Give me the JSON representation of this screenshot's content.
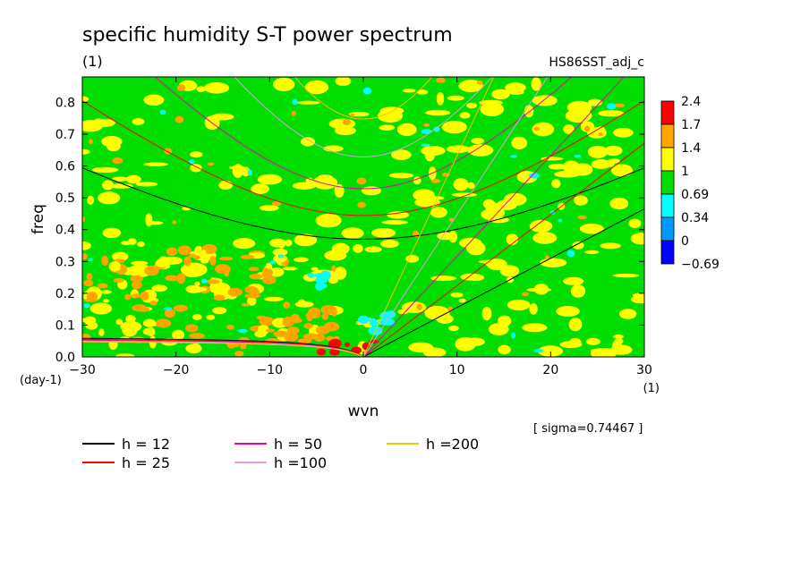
{
  "chart_data": {
    "type": "heatmap",
    "title": "specific humidity S-T power spectrum",
    "units": "(1)",
    "dataset": "HS86SST_adj_c",
    "xlabel": "wvn",
    "ylabel": "freq",
    "x_units": "(1)",
    "y_units": "(day-1)",
    "xlim": [
      -30,
      30
    ],
    "ylim": [
      0,
      0.88
    ],
    "x_ticks": [
      -30,
      -20,
      -10,
      0,
      10,
      20,
      30
    ],
    "x_tick_labels": [
      "−30",
      "−20",
      "−10",
      "0",
      "10",
      "20",
      "30"
    ],
    "y_ticks": [
      0,
      0.1,
      0.2,
      0.3,
      0.4,
      0.5,
      0.6,
      0.7,
      0.8
    ],
    "y_tick_labels": [
      "0.0",
      "0.1",
      "0.2",
      "0.3",
      "0.4",
      "0.5",
      "0.6",
      "0.7",
      "0.8"
    ],
    "sigma": "[ sigma=0.74467 ]",
    "colorbar": {
      "levels": [
        "2.4",
        "1.7",
        "1.4",
        "1",
        "0.69",
        "0.34",
        "0",
        "−0.69"
      ],
      "colors": [
        "#ff0000",
        "#ffa500",
        "#ffff00",
        "#00dd00",
        "#00ffff",
        "#0099ff",
        "#0000ff"
      ]
    },
    "field_regions": [
      {
        "level": "1.4-1.7",
        "x": [
          -30,
          -10
        ],
        "y": [
          0.05,
          0.35
        ]
      },
      {
        "level": "1.4-1.7",
        "x": [
          -8,
          -2
        ],
        "y": [
          0.05,
          0.15
        ]
      },
      {
        "level": "1.7-2.4",
        "x": [
          -5,
          2
        ],
        "y": [
          0.0,
          0.05
        ]
      },
      {
        "level": "0.34-0.69",
        "x": [
          0,
          3
        ],
        "y": [
          0.08,
          0.14
        ]
      },
      {
        "level": "0.34-0.69",
        "x": [
          -6,
          -4
        ],
        "y": [
          0.22,
          0.26
        ]
      }
    ],
    "dispersion_curves": [
      {
        "name": "h = 12",
        "label": "h = 12",
        "color": "#000000"
      },
      {
        "name": "h = 25",
        "label": "h = 25",
        "color": "#ff0000"
      },
      {
        "name": "h = 50",
        "label": "h = 50",
        "color": "#ee00aa"
      },
      {
        "name": "h =100",
        "label": "h =100",
        "color": "#e0a0e0"
      },
      {
        "name": "h =200",
        "label": "h =200",
        "color": "#ffc000"
      }
    ]
  }
}
